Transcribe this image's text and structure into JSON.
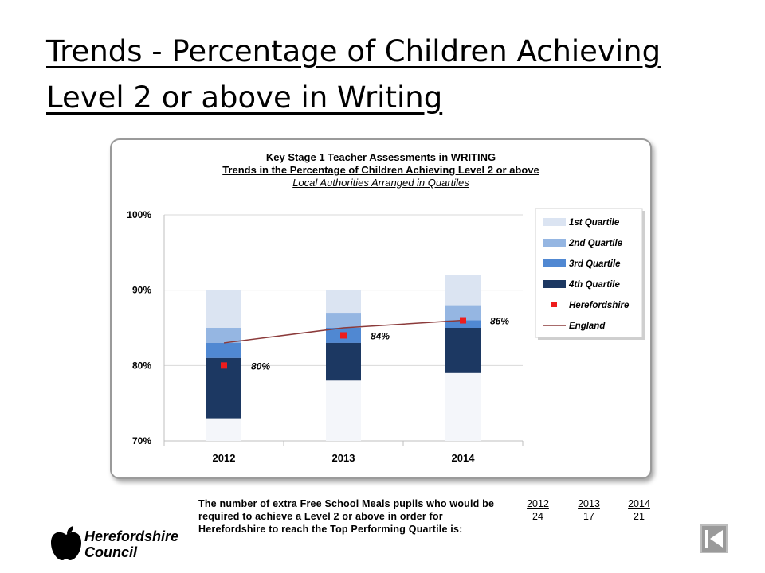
{
  "slide": {
    "title": "Trends - Percentage of Children Achieving Level 2 or above in Writing"
  },
  "chart_data": {
    "type": "bar",
    "title": "Key Stage 1 Teacher Assessments in WRITING",
    "subtitle": "Trends in the Percentage of Children Achieving Level 2 or above",
    "subtitle2": "Local Authorities Arranged in Quartiles",
    "categories": [
      "2012",
      "2013",
      "2014"
    ],
    "ylim": [
      70,
      100
    ],
    "yticks": [
      "70%",
      "80%",
      "90%",
      "100%"
    ],
    "ytick_values": [
      70,
      80,
      90,
      100
    ],
    "quartile_bands": [
      {
        "name": "1st Quartile",
        "color": "#dbe4f2",
        "ranges": [
          [
            85,
            90
          ],
          [
            87,
            90
          ],
          [
            88,
            92
          ]
        ]
      },
      {
        "name": "2nd Quartile",
        "color": "#95b6e2",
        "ranges": [
          [
            83,
            85
          ],
          [
            85,
            87
          ],
          [
            86,
            88
          ]
        ]
      },
      {
        "name": "3rd Quartile",
        "color": "#5088d2",
        "ranges": [
          [
            81,
            83
          ],
          [
            83,
            85
          ],
          [
            85,
            86
          ]
        ]
      },
      {
        "name": "4th Quartile",
        "color": "#1c3862",
        "ranges": [
          [
            73,
            81
          ],
          [
            78,
            83
          ],
          [
            79,
            85
          ]
        ]
      }
    ],
    "series": [
      {
        "name": "Herefordshire",
        "color": "#ee1c1c",
        "values": [
          80,
          84,
          86
        ],
        "labels": [
          "80%",
          "84%",
          "86%"
        ]
      },
      {
        "name": "England",
        "color": "#8b3a3a",
        "values": [
          83,
          85,
          86
        ]
      }
    ],
    "legend_position": "right"
  },
  "fsm_table": {
    "line1": "The number of extra Free School Meals pupils who would be",
    "line2": "required to achieve a Level 2 or above in order for",
    "line3": "Herefordshire to reach the Top Performing Quartile is:",
    "columns": [
      {
        "year": "2012",
        "value": "24"
      },
      {
        "year": "2013",
        "value": "17"
      },
      {
        "year": "2014",
        "value": "21"
      }
    ]
  },
  "logo": {
    "line1": "Herefordshire",
    "line2": "Council"
  },
  "nav": {
    "back_icon": "back-arrow-icon"
  }
}
